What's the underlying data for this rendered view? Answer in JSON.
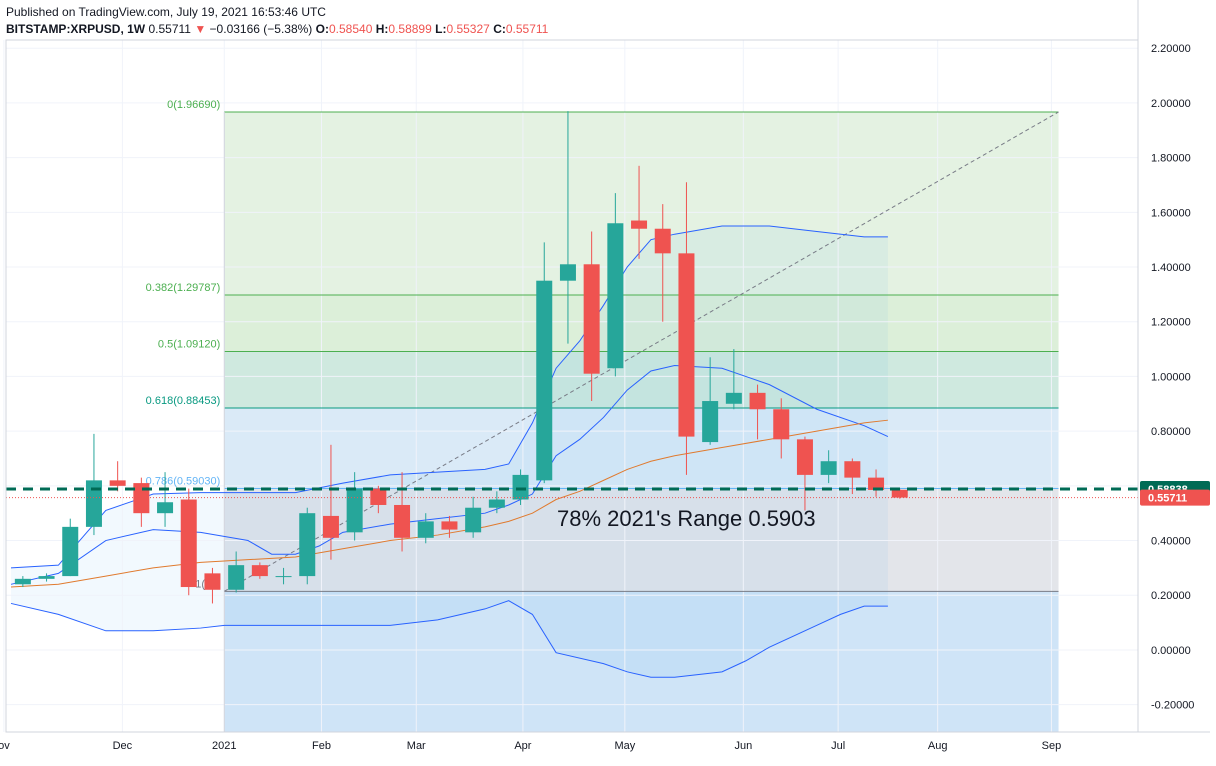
{
  "header": {
    "published": "Published on TradingView.com, July 19, 2021 16:53:46 UTC",
    "symbol": "BITSTAMP:XRPUSD, 1W",
    "last": "0.55711",
    "change_arrow": "▼",
    "change": "−0.03166 (−5.38%)",
    "o_label": "O:",
    "o_value": "0.58540",
    "h_label": "H:",
    "h_value": "0.58899",
    "l_label": "L:",
    "l_value": "0.55327",
    "c_label": "C:",
    "c_value": "0.55711"
  },
  "chart_data": {
    "type": "candlestick",
    "ylim": [
      -0.3,
      2.23
    ],
    "y_ticks": [
      "2.20000",
      "2.00000",
      "1.80000",
      "1.60000",
      "1.40000",
      "1.20000",
      "1.00000",
      "0.80000",
      "0.60000",
      "0.40000",
      "0.20000",
      "0.00000",
      "-0.20000"
    ],
    "x_ticks": [
      {
        "label": "ov",
        "week": -0.3
      },
      {
        "label": "Dec",
        "week": 4.7
      },
      {
        "label": "2021",
        "week": 9
      },
      {
        "label": "Feb",
        "week": 13.1
      },
      {
        "label": "Mar",
        "week": 17.1
      },
      {
        "label": "Apr",
        "week": 21.6
      },
      {
        "label": "May",
        "week": 25.9
      },
      {
        "label": "Jun",
        "week": 30.9
      },
      {
        "label": "Jul",
        "week": 34.9
      },
      {
        "label": "Aug",
        "week": 39.1
      },
      {
        "label": "Sep",
        "week": 43.9
      }
    ],
    "candles": [
      {
        "o": 0.24,
        "h": 0.27,
        "l": 0.23,
        "c": 0.26
      },
      {
        "o": 0.26,
        "h": 0.28,
        "l": 0.25,
        "c": 0.27
      },
      {
        "o": 0.27,
        "h": 0.48,
        "l": 0.27,
        "c": 0.45
      },
      {
        "o": 0.45,
        "h": 0.79,
        "l": 0.42,
        "c": 0.62
      },
      {
        "o": 0.62,
        "h": 0.69,
        "l": 0.58,
        "c": 0.6
      },
      {
        "o": 0.61,
        "h": 0.63,
        "l": 0.45,
        "c": 0.5
      },
      {
        "o": 0.5,
        "h": 0.65,
        "l": 0.45,
        "c": 0.54
      },
      {
        "o": 0.55,
        "h": 0.59,
        "l": 0.2,
        "c": 0.23
      },
      {
        "o": 0.28,
        "h": 0.3,
        "l": 0.17,
        "c": 0.22
      },
      {
        "o": 0.22,
        "h": 0.36,
        "l": 0.21,
        "c": 0.31
      },
      {
        "o": 0.31,
        "h": 0.32,
        "l": 0.26,
        "c": 0.27
      },
      {
        "o": 0.27,
        "h": 0.3,
        "l": 0.24,
        "c": 0.27
      },
      {
        "o": 0.27,
        "h": 0.52,
        "l": 0.24,
        "c": 0.5
      },
      {
        "o": 0.49,
        "h": 0.75,
        "l": 0.33,
        "c": 0.41
      },
      {
        "o": 0.43,
        "h": 0.65,
        "l": 0.4,
        "c": 0.59
      },
      {
        "o": 0.59,
        "h": 0.6,
        "l": 0.5,
        "c": 0.53
      },
      {
        "o": 0.53,
        "h": 0.65,
        "l": 0.36,
        "c": 0.41
      },
      {
        "o": 0.41,
        "h": 0.5,
        "l": 0.39,
        "c": 0.47
      },
      {
        "o": 0.47,
        "h": 0.49,
        "l": 0.41,
        "c": 0.44
      },
      {
        "o": 0.43,
        "h": 0.56,
        "l": 0.41,
        "c": 0.52
      },
      {
        "o": 0.52,
        "h": 0.58,
        "l": 0.5,
        "c": 0.55
      },
      {
        "o": 0.55,
        "h": 0.66,
        "l": 0.53,
        "c": 0.64
      },
      {
        "o": 0.62,
        "h": 1.49,
        "l": 0.61,
        "c": 1.35
      },
      {
        "o": 1.35,
        "h": 1.97,
        "l": 1.12,
        "c": 1.41
      },
      {
        "o": 1.41,
        "h": 1.53,
        "l": 0.91,
        "c": 1.01
      },
      {
        "o": 1.03,
        "h": 1.67,
        "l": 1.0,
        "c": 1.56
      },
      {
        "o": 1.57,
        "h": 1.77,
        "l": 1.43,
        "c": 1.54
      },
      {
        "o": 1.54,
        "h": 1.63,
        "l": 1.2,
        "c": 1.45
      },
      {
        "o": 1.45,
        "h": 1.71,
        "l": 0.64,
        "c": 0.78
      },
      {
        "o": 0.76,
        "h": 1.07,
        "l": 0.75,
        "c": 0.91
      },
      {
        "o": 0.9,
        "h": 1.1,
        "l": 0.88,
        "c": 0.94
      },
      {
        "o": 0.94,
        "h": 0.97,
        "l": 0.77,
        "c": 0.88
      },
      {
        "o": 0.88,
        "h": 0.92,
        "l": 0.7,
        "c": 0.77
      },
      {
        "o": 0.77,
        "h": 0.78,
        "l": 0.51,
        "c": 0.64
      },
      {
        "o": 0.64,
        "h": 0.73,
        "l": 0.61,
        "c": 0.69
      },
      {
        "o": 0.69,
        "h": 0.7,
        "l": 0.57,
        "c": 0.63
      },
      {
        "o": 0.63,
        "h": 0.66,
        "l": 0.56,
        "c": 0.585
      },
      {
        "o": 0.5854,
        "h": 0.58899,
        "l": 0.55327,
        "c": 0.55711
      }
    ],
    "bollinger_upper": [
      {
        "w": 0,
        "v": 0.3
      },
      {
        "w": 2,
        "v": 0.31
      },
      {
        "w": 4,
        "v": 0.51
      },
      {
        "w": 6,
        "v": 0.57
      },
      {
        "w": 8,
        "v": 0.575
      },
      {
        "w": 12,
        "v": 0.575
      },
      {
        "w": 14,
        "v": 0.61
      },
      {
        "w": 16,
        "v": 0.64
      },
      {
        "w": 18,
        "v": 0.65
      },
      {
        "w": 20,
        "v": 0.66
      },
      {
        "w": 21,
        "v": 0.68
      },
      {
        "w": 22,
        "v": 0.83
      },
      {
        "w": 23,
        "v": 1.03
      },
      {
        "w": 24,
        "v": 1.13
      },
      {
        "w": 25,
        "v": 1.26
      },
      {
        "w": 26,
        "v": 1.4
      },
      {
        "w": 27,
        "v": 1.5
      },
      {
        "w": 28,
        "v": 1.52
      },
      {
        "w": 30,
        "v": 1.55
      },
      {
        "w": 32,
        "v": 1.55
      },
      {
        "w": 34,
        "v": 1.53
      },
      {
        "w": 36,
        "v": 1.51
      },
      {
        "w": 37,
        "v": 1.51
      }
    ],
    "bollinger_middle": [
      {
        "w": 0,
        "v": 0.24
      },
      {
        "w": 2,
        "v": 0.28
      },
      {
        "w": 4,
        "v": 0.4
      },
      {
        "w": 6,
        "v": 0.44
      },
      {
        "w": 8,
        "v": 0.43
      },
      {
        "w": 10,
        "v": 0.4
      },
      {
        "w": 11,
        "v": 0.35
      },
      {
        "w": 12,
        "v": 0.35
      },
      {
        "w": 13,
        "v": 0.38
      },
      {
        "w": 14,
        "v": 0.43
      },
      {
        "w": 16,
        "v": 0.46
      },
      {
        "w": 18,
        "v": 0.48
      },
      {
        "w": 20,
        "v": 0.5
      },
      {
        "w": 21,
        "v": 0.53
      },
      {
        "w": 22,
        "v": 0.57
      },
      {
        "w": 23,
        "v": 0.71
      },
      {
        "w": 24,
        "v": 0.77
      },
      {
        "w": 25,
        "v": 0.85
      },
      {
        "w": 26,
        "v": 0.95
      },
      {
        "w": 27,
        "v": 1.02
      },
      {
        "w": 28,
        "v": 1.04
      },
      {
        "w": 30,
        "v": 1.03
      },
      {
        "w": 31,
        "v": 1.0
      },
      {
        "w": 32,
        "v": 0.97
      },
      {
        "w": 34,
        "v": 0.88
      },
      {
        "w": 36,
        "v": 0.82
      },
      {
        "w": 37,
        "v": 0.78
      }
    ],
    "bollinger_lower": [
      {
        "w": 0,
        "v": 0.17
      },
      {
        "w": 2,
        "v": 0.13
      },
      {
        "w": 4,
        "v": 0.07
      },
      {
        "w": 6,
        "v": 0.07
      },
      {
        "w": 8,
        "v": 0.08
      },
      {
        "w": 9,
        "v": 0.09
      },
      {
        "w": 12,
        "v": 0.09
      },
      {
        "w": 14,
        "v": 0.09
      },
      {
        "w": 16,
        "v": 0.09
      },
      {
        "w": 18,
        "v": 0.11
      },
      {
        "w": 20,
        "v": 0.15
      },
      {
        "w": 21,
        "v": 0.18
      },
      {
        "w": 22,
        "v": 0.13
      },
      {
        "w": 23,
        "v": -0.01
      },
      {
        "w": 25,
        "v": -0.05
      },
      {
        "w": 26,
        "v": -0.08
      },
      {
        "w": 27,
        "v": -0.1
      },
      {
        "w": 28,
        "v": -0.1
      },
      {
        "w": 30,
        "v": -0.08
      },
      {
        "w": 31,
        "v": -0.04
      },
      {
        "w": 32,
        "v": 0.01
      },
      {
        "w": 34,
        "v": 0.09
      },
      {
        "w": 35,
        "v": 0.13
      },
      {
        "w": 36,
        "v": 0.16
      },
      {
        "w": 37,
        "v": 0.16
      }
    ],
    "moving_average": [
      {
        "w": 0,
        "v": 0.23
      },
      {
        "w": 2,
        "v": 0.24
      },
      {
        "w": 4,
        "v": 0.27
      },
      {
        "w": 6,
        "v": 0.3
      },
      {
        "w": 8,
        "v": 0.32
      },
      {
        "w": 10,
        "v": 0.33
      },
      {
        "w": 12,
        "v": 0.34
      },
      {
        "w": 14,
        "v": 0.37
      },
      {
        "w": 16,
        "v": 0.4
      },
      {
        "w": 18,
        "v": 0.42
      },
      {
        "w": 20,
        "v": 0.45
      },
      {
        "w": 21,
        "v": 0.47
      },
      {
        "w": 22,
        "v": 0.5
      },
      {
        "w": 23,
        "v": 0.55
      },
      {
        "w": 24,
        "v": 0.58
      },
      {
        "w": 25,
        "v": 0.62
      },
      {
        "w": 26,
        "v": 0.66
      },
      {
        "w": 27,
        "v": 0.69
      },
      {
        "w": 28,
        "v": 0.71
      },
      {
        "w": 30,
        "v": 0.74
      },
      {
        "w": 32,
        "v": 0.77
      },
      {
        "w": 34,
        "v": 0.8
      },
      {
        "w": 36,
        "v": 0.83
      },
      {
        "w": 37,
        "v": 0.84
      }
    ],
    "fibonacci": {
      "start_week": 9,
      "end_week": 44.2,
      "levels": [
        {
          "label": "0(1.96690)",
          "value": 1.9669,
          "color": "#4caf50"
        },
        {
          "label": "0.382(1.29787)",
          "value": 1.29787,
          "color": "#4caf50"
        },
        {
          "label": "0.5(1.09120)",
          "value": 1.0912,
          "color": "#4caf50"
        },
        {
          "label": "0.618(0.88453)",
          "value": 0.88453,
          "color": "#089981"
        },
        {
          "label": "0.786(0.59030)",
          "value": 0.5903,
          "color": "#64b5f6"
        },
        {
          "label": "1(0.2",
          "value": 0.2142,
          "color": "#787b86"
        }
      ],
      "trend_line": {
        "from": {
          "w": 9,
          "v": 0.2142
        },
        "to": {
          "w": 44.2,
          "v": 1.9669
        }
      }
    },
    "annotation": "78% 2021's Range 0.5903",
    "horizontal_line": {
      "value": 0.58838,
      "label": "0.58838",
      "color": "#006b55"
    },
    "last_price": {
      "value": 0.55711,
      "label": "0.55711",
      "color": "#ef5350"
    },
    "colors": {
      "up": "#26a69a",
      "down": "#ef5350",
      "bollinger": "#2962ff",
      "ma": "#e07a2e"
    }
  }
}
